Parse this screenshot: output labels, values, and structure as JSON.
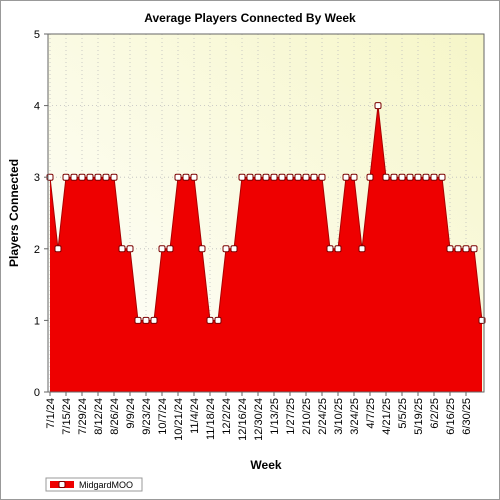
{
  "chart_data": {
    "type": "area",
    "title": "Average Players Connected By Week",
    "xlabel": "Week",
    "ylabel": "Players Connected",
    "ylim": [
      0,
      5
    ],
    "yticks": [
      "0",
      "1",
      "2",
      "3",
      "4",
      "5"
    ],
    "grid": true,
    "legend_position": "bottom-left",
    "colors": {
      "plot_bg_top": "#f6f6c8",
      "plot_bg_bottom": "#ffffff",
      "fill": "#ee0000",
      "line": "#aa0000",
      "marker_fill": "#ffffff",
      "marker_stroke": "#7a0000",
      "grid": "#bdbdbd"
    },
    "x_tick_labels": [
      "7/1/24",
      "7/15/24",
      "7/29/24",
      "8/12/24",
      "8/26/24",
      "9/9/24",
      "9/23/24",
      "10/7/24",
      "10/21/24",
      "11/4/24",
      "11/18/24",
      "12/2/24",
      "12/16/24",
      "12/30/24",
      "1/13/25",
      "1/27/25",
      "2/10/25",
      "2/24/25",
      "3/10/25",
      "3/24/25",
      "4/7/25",
      "4/21/25",
      "5/5/25",
      "5/19/25",
      "6/2/25",
      "6/16/25",
      "6/30/25"
    ],
    "series": [
      {
        "name": "MidgardMOO",
        "values": [
          3,
          2,
          3,
          3,
          3,
          3,
          3,
          3,
          3,
          2,
          2,
          1,
          1,
          1,
          2,
          2,
          3,
          3,
          3,
          2,
          1,
          1,
          2,
          2,
          3,
          3,
          3,
          3,
          3,
          3,
          3,
          3,
          3,
          3,
          3,
          2,
          2,
          3,
          3,
          2,
          3,
          4,
          3,
          3,
          3,
          3,
          3,
          3,
          3,
          3,
          2,
          2,
          2,
          2,
          1
        ]
      }
    ]
  }
}
